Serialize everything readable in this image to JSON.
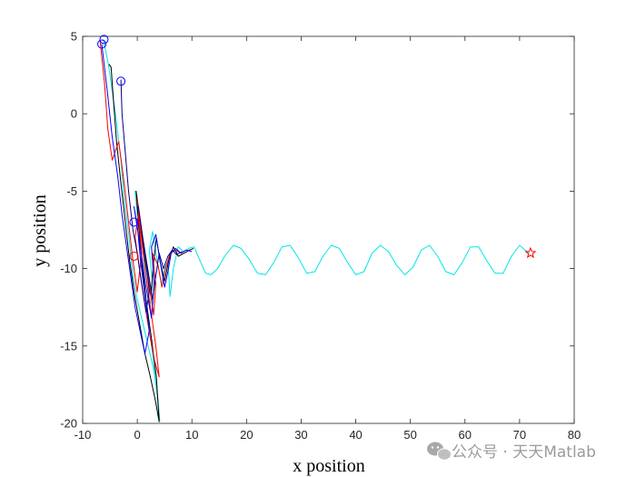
{
  "chart_data": {
    "type": "line",
    "title": "",
    "xlabel": "x position",
    "ylabel": "y position",
    "xlim": [
      -10,
      80
    ],
    "ylim": [
      -20,
      5
    ],
    "xticks": [
      -10,
      0,
      10,
      20,
      30,
      40,
      50,
      60,
      70,
      80
    ],
    "yticks": [
      5,
      0,
      -5,
      -10,
      -15,
      -20
    ],
    "grid": false,
    "legend": "none",
    "series": [
      {
        "color": "#00e5e5",
        "points": [
          [
            -6.2,
            4.8
          ],
          [
            -5.3,
            3.2
          ],
          [
            -4.0,
            0.0
          ],
          [
            -3.0,
            -3.0
          ],
          [
            -2.4,
            -5.5
          ],
          [
            -1.5,
            -8.0
          ],
          [
            -0.8,
            -10.5
          ],
          [
            0.0,
            -12.0
          ],
          [
            1.0,
            -13.5
          ],
          [
            2.0,
            -15.0
          ],
          [
            3.0,
            -16.5
          ],
          [
            3.8,
            -18.5
          ],
          [
            4.1,
            -19.8
          ],
          [
            3.0,
            -16.0
          ],
          [
            2.0,
            -13.5
          ],
          [
            1.3,
            -11.0
          ],
          [
            0.6,
            -8.5
          ],
          [
            0.0,
            -6.5
          ],
          [
            -0.4,
            -5.0
          ],
          [
            0.6,
            -7.5
          ],
          [
            1.5,
            -10.0
          ],
          [
            2.3,
            -12.5
          ],
          [
            2.8,
            -11.0
          ],
          [
            2.2,
            -8.8
          ],
          [
            2.8,
            -7.6
          ],
          [
            3.6,
            -9.4
          ],
          [
            4.4,
            -11.0
          ],
          [
            5.0,
            -10.0
          ],
          [
            5.6,
            -9.5
          ],
          [
            6.0,
            -11.8
          ],
          [
            6.6,
            -10.0
          ],
          [
            7.5,
            -8.6
          ],
          [
            8.5,
            -8.9
          ],
          [
            9.4,
            -8.7
          ],
          [
            10.4,
            -8.6
          ],
          [
            11.5,
            -9.5
          ],
          [
            12.5,
            -10.3
          ],
          [
            13.5,
            -10.4
          ],
          [
            14.7,
            -10.0
          ],
          [
            16.0,
            -9.2
          ],
          [
            17.6,
            -8.5
          ],
          [
            19.0,
            -8.7
          ],
          [
            20.5,
            -9.4
          ],
          [
            22.0,
            -10.3
          ],
          [
            23.5,
            -10.4
          ],
          [
            25.0,
            -9.6
          ],
          [
            26.5,
            -8.6
          ],
          [
            28.0,
            -8.5
          ],
          [
            29.5,
            -9.3
          ],
          [
            31.0,
            -10.3
          ],
          [
            32.5,
            -10.2
          ],
          [
            34.0,
            -9.2
          ],
          [
            35.5,
            -8.5
          ],
          [
            37.0,
            -8.7
          ],
          [
            38.5,
            -9.6
          ],
          [
            40.0,
            -10.4
          ],
          [
            41.5,
            -10.2
          ],
          [
            43.0,
            -9.0
          ],
          [
            44.5,
            -8.5
          ],
          [
            46.0,
            -8.9
          ],
          [
            47.5,
            -9.8
          ],
          [
            49.0,
            -10.4
          ],
          [
            50.5,
            -9.9
          ],
          [
            52.0,
            -8.8
          ],
          [
            53.5,
            -8.5
          ],
          [
            55.0,
            -9.2
          ],
          [
            56.5,
            -10.2
          ],
          [
            58.0,
            -10.4
          ],
          [
            59.5,
            -9.6
          ],
          [
            61.0,
            -8.6
          ],
          [
            62.5,
            -8.6
          ],
          [
            64.0,
            -9.5
          ],
          [
            65.5,
            -10.3
          ],
          [
            67.0,
            -10.3
          ],
          [
            68.5,
            -9.2
          ],
          [
            70.0,
            -8.5
          ],
          [
            71.0,
            -8.8
          ],
          [
            71.8,
            -9.0
          ]
        ]
      },
      {
        "color": "#000000",
        "points": [
          [
            -5.2,
            3.2
          ],
          [
            -4.8,
            3.0
          ],
          [
            -4.4,
            1.0
          ],
          [
            -3.8,
            -1.8
          ],
          [
            -3.0,
            -4.5
          ],
          [
            -2.2,
            -7.0
          ],
          [
            -1.4,
            -9.5
          ],
          [
            -0.6,
            -11.5
          ],
          [
            0.4,
            -13.5
          ],
          [
            1.4,
            -15.5
          ],
          [
            2.4,
            -17.0
          ],
          [
            3.3,
            -18.5
          ],
          [
            4.0,
            -19.9
          ],
          [
            3.5,
            -17.0
          ],
          [
            2.6,
            -14.5
          ],
          [
            1.6,
            -12.0
          ],
          [
            0.8,
            -9.5
          ],
          [
            0.2,
            -7.0
          ],
          [
            -0.2,
            -5.0
          ],
          [
            0.6,
            -7.2
          ],
          [
            1.6,
            -9.8
          ],
          [
            2.5,
            -11.8
          ],
          [
            2.9,
            -10.0
          ],
          [
            3.5,
            -8.0
          ],
          [
            4.2,
            -9.6
          ],
          [
            5.0,
            -10.8
          ],
          [
            5.8,
            -9.4
          ],
          [
            6.6,
            -8.6
          ],
          [
            7.5,
            -9.2
          ],
          [
            8.6,
            -9.0
          ],
          [
            9.6,
            -8.8
          ],
          [
            10.3,
            -8.7
          ]
        ]
      },
      {
        "color": "#ff0000",
        "points": [
          [
            -6.8,
            4.7
          ],
          [
            -6.0,
            2.0
          ],
          [
            -5.4,
            -1.0
          ],
          [
            -4.6,
            -3.0
          ],
          [
            -3.4,
            -1.8
          ],
          [
            -2.4,
            -4.5
          ],
          [
            -1.6,
            -7.0
          ],
          [
            -0.8,
            -9.5
          ],
          [
            0.0,
            -11.5
          ],
          [
            0.8,
            -9.0
          ],
          [
            0.2,
            -6.5
          ],
          [
            -0.4,
            -8.0
          ],
          [
            0.6,
            -10.5
          ],
          [
            1.6,
            -12.8
          ],
          [
            2.4,
            -14.5
          ],
          [
            3.2,
            -16.0
          ],
          [
            4.0,
            -17.0
          ],
          [
            3.4,
            -15.0
          ],
          [
            2.4,
            -12.5
          ],
          [
            1.4,
            -10.0
          ],
          [
            0.6,
            -7.5
          ],
          [
            0.0,
            -5.5
          ],
          [
            1.0,
            -8.0
          ],
          [
            2.0,
            -10.5
          ],
          [
            3.0,
            -13.0
          ],
          [
            3.4,
            -11.0
          ],
          [
            2.8,
            -9.0
          ],
          [
            3.8,
            -9.8
          ],
          [
            4.5,
            -11.2
          ],
          [
            5.2,
            -10.0
          ],
          [
            6.0,
            -9.0
          ],
          [
            7.0,
            -8.8
          ],
          [
            8.0,
            -9.0
          ],
          [
            9.0,
            -8.8
          ]
        ]
      },
      {
        "color": "#0000ff",
        "points": [
          [
            -6.5,
            4.5
          ],
          [
            -5.5,
            1.5
          ],
          [
            -4.6,
            -1.5
          ],
          [
            -3.6,
            -4.0
          ],
          [
            -2.8,
            -6.5
          ],
          [
            -2.0,
            -8.5
          ],
          [
            -1.2,
            -10.5
          ],
          [
            -0.4,
            -12.5
          ],
          [
            0.5,
            -14.0
          ],
          [
            1.4,
            -15.5
          ],
          [
            2.2,
            -14.0
          ],
          [
            1.5,
            -12.0
          ],
          [
            0.6,
            -9.5
          ],
          [
            0.0,
            -7.2
          ],
          [
            -0.6,
            -6.0
          ],
          [
            0.5,
            -8.5
          ],
          [
            1.5,
            -11.0
          ],
          [
            2.6,
            -13.2
          ],
          [
            3.1,
            -11.0
          ],
          [
            2.6,
            -8.6
          ],
          [
            3.4,
            -7.8
          ],
          [
            4.2,
            -9.6
          ],
          [
            5.0,
            -11.2
          ],
          [
            5.6,
            -10.2
          ],
          [
            6.2,
            -9.0
          ],
          [
            7.0,
            -8.7
          ],
          [
            8.0,
            -9.0
          ],
          [
            9.0,
            -8.8
          ],
          [
            10.0,
            -8.9
          ]
        ]
      },
      {
        "color": "#000080",
        "points": [
          [
            -3.0,
            2.2
          ],
          [
            -2.8,
            0.0
          ],
          [
            -2.2,
            -2.5
          ],
          [
            -1.6,
            -5.0
          ],
          [
            -0.8,
            -7.5
          ],
          [
            0.0,
            -9.0
          ],
          [
            0.8,
            -11.0
          ],
          [
            1.6,
            -12.8
          ],
          [
            2.2,
            -11.5
          ],
          [
            1.6,
            -9.5
          ],
          [
            0.8,
            -7.5
          ],
          [
            0.2,
            -6.0
          ],
          [
            1.0,
            -8.0
          ],
          [
            2.0,
            -10.2
          ],
          [
            2.8,
            -12.0
          ],
          [
            3.4,
            -10.5
          ],
          [
            4.0,
            -9.0
          ],
          [
            4.8,
            -10.0
          ],
          [
            5.6,
            -9.2
          ],
          [
            6.4,
            -8.8
          ],
          [
            7.2,
            -9.1
          ],
          [
            8.2,
            -8.9
          ]
        ]
      }
    ],
    "markers": [
      {
        "shape": "circle",
        "color": "#0000ff",
        "x": -6.1,
        "y": 4.8
      },
      {
        "shape": "circle",
        "color": "#0000ff",
        "x": -6.5,
        "y": 4.5
      },
      {
        "shape": "circle",
        "color": "#0000ff",
        "x": -3.0,
        "y": 2.1
      },
      {
        "shape": "circle",
        "color": "#0000ff",
        "x": -0.6,
        "y": -7.0
      },
      {
        "shape": "circle",
        "color": "#ff0000",
        "x": -0.6,
        "y": -9.2
      },
      {
        "shape": "star",
        "color": "#ff0000",
        "x": 72.0,
        "y": -9.0
      }
    ]
  },
  "watermark": {
    "text": "公众号 · 天天Matlab",
    "icon": "wechat-icon"
  }
}
